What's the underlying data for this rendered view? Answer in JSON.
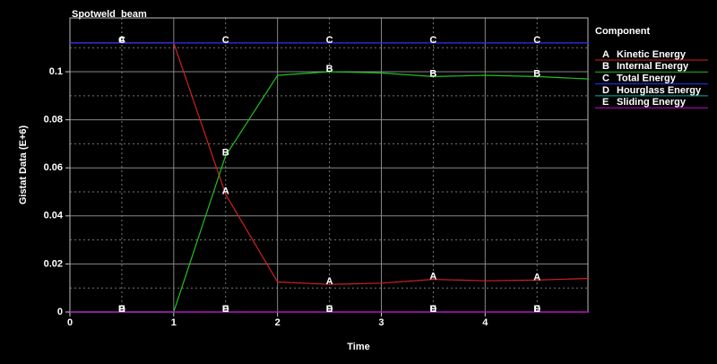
{
  "chart_data": {
    "type": "line",
    "title": "Spotweld_beam",
    "x_label": "Time",
    "y_label": "Gistat Data (E+6)",
    "legend_title": "Component",
    "x": [
      0,
      0.5,
      1,
      1.5,
      2,
      2.5,
      3,
      3.5,
      4,
      4.5,
      5
    ],
    "series": [
      {
        "marker": "A",
        "name": "Kinetic Energy",
        "color": "#d02020",
        "values": [
          0.112,
          0.112,
          0.112,
          0.049,
          0.0125,
          0.0115,
          0.012,
          0.0136,
          0.013,
          0.0133,
          0.014
        ]
      },
      {
        "marker": "B",
        "name": "Internal Energy",
        "color": "#20c020",
        "values": [
          0,
          0,
          0,
          0.065,
          0.0985,
          0.1,
          0.0995,
          0.098,
          0.0985,
          0.098,
          0.097
        ]
      },
      {
        "marker": "C",
        "name": "Total Energy",
        "color": "#3030ff",
        "values": [
          0.112,
          0.112,
          0.112,
          0.112,
          0.112,
          0.112,
          0.112,
          0.112,
          0.112,
          0.112,
          0.112
        ]
      },
      {
        "marker": "D",
        "name": "Hourglass Energy",
        "color": "#00b0b0",
        "values": [
          0,
          0,
          0,
          0,
          0,
          0,
          0,
          0,
          0,
          0,
          0
        ]
      },
      {
        "marker": "E",
        "name": "Sliding Energy",
        "color": "#d000d0",
        "values": [
          0,
          0,
          0,
          0,
          0,
          0,
          0,
          0,
          0,
          0,
          0
        ]
      }
    ],
    "xlim": [
      0,
      4.99
    ],
    "ylim": [
      0,
      0.1224
    ],
    "xticks": [
      0,
      1,
      2,
      3,
      4
    ],
    "yticks": [
      0,
      0.02,
      0.04,
      0.06,
      0.08,
      0.1
    ],
    "minor_xticks": [
      0.5,
      1.5,
      2.5,
      3.5,
      4.5
    ],
    "minor_yticks": [
      0.01,
      0.03,
      0.05,
      0.07,
      0.09,
      0.11
    ],
    "grid": true
  }
}
